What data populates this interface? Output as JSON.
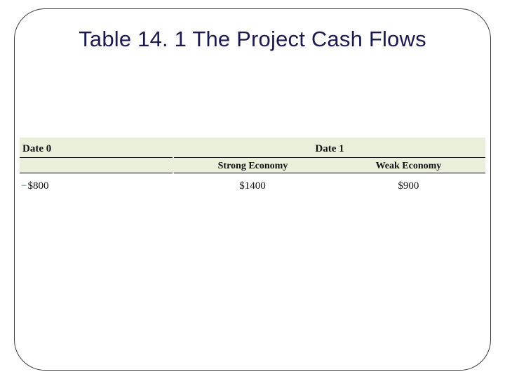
{
  "title": "Table 14. 1  The Project Cash Flows",
  "table": {
    "type": "table",
    "background_color": "#e9efda",
    "rule_color": "#000000",
    "font_family": "Georgia, serif",
    "header_top": {
      "left": "Date 0",
      "right": "Date 1"
    },
    "header_sub": {
      "col1": "Strong Economy",
      "col2": "Weak Economy"
    },
    "data": {
      "minus_sign_color": "#0a7a7a",
      "col0_minus": "−",
      "col0_value": "$800",
      "col1": "$1400",
      "col2": "$900"
    }
  },
  "colors": {
    "title_color": "#1a1a4d",
    "frame_color": "#3b3b3b",
    "slide_bg": "#ffffff"
  }
}
